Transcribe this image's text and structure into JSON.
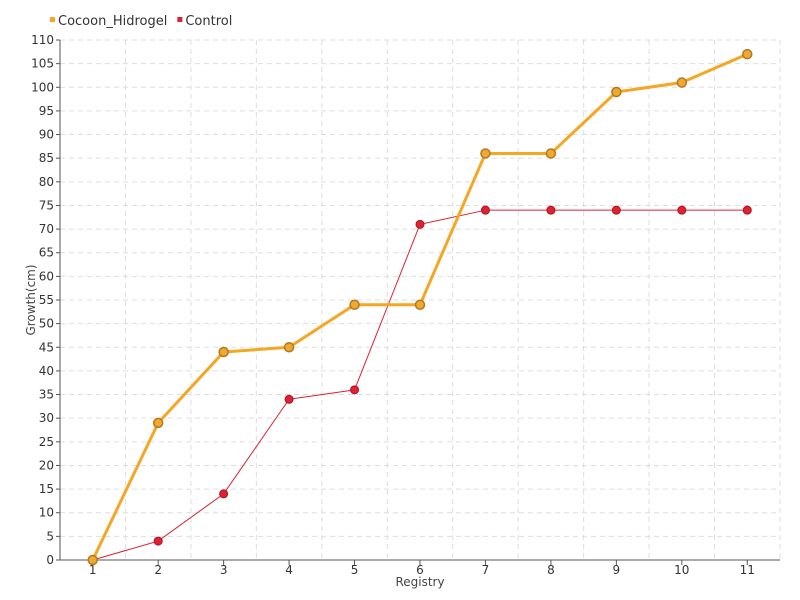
{
  "chart_data": {
    "type": "line",
    "xlabel": "Registry",
    "ylabel": "Growth(cm)",
    "categories": [
      "1",
      "2",
      "3",
      "4",
      "5",
      "6",
      "7",
      "8",
      "9",
      "10",
      "11"
    ],
    "ylim": [
      0,
      110
    ],
    "ytick_step": 5,
    "grid": true,
    "legend_position": "top-left",
    "series": [
      {
        "name": "Cocoon_Hidrogel",
        "color": "#f5a623",
        "marker_fill": "#f0a830",
        "marker_stroke": "#b07a20",
        "values": [
          0,
          29,
          44,
          45,
          54,
          54,
          86,
          86,
          99,
          101,
          107
        ]
      },
      {
        "name": "Control",
        "color": "#dd2233",
        "marker_fill": "#dd2233",
        "marker_stroke": "#b0101e",
        "values": [
          0,
          4,
          14,
          34,
          36,
          71,
          74,
          74,
          74,
          74,
          74
        ]
      }
    ]
  }
}
